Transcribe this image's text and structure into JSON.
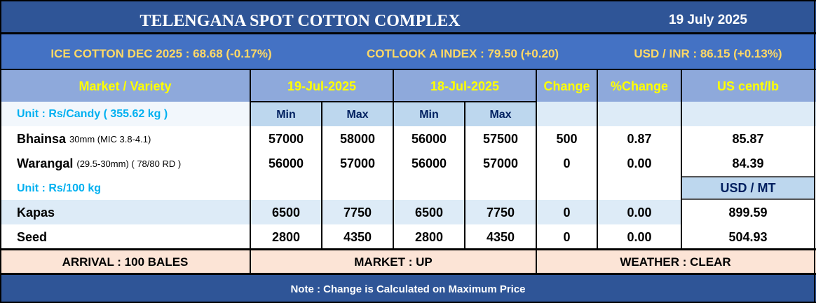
{
  "header": {
    "title": "TELENGANA SPOT COTTON COMPLEX",
    "date": "19 July 2025"
  },
  "ticker": {
    "ice": "ICE COTTON DEC 2025 : 68.68 (-0.17%)",
    "cotlook": "COTLOOK A INDEX : 79.50 (+0.20)",
    "usdinr": "USD / INR : 86.15 (+0.13%)"
  },
  "columns": {
    "market": "Market / Variety",
    "date1": "19-Jul-2025",
    "date2": "18-Jul-2025",
    "change": "Change",
    "pct": "%Change",
    "us": "US cent/lb",
    "min": "Min",
    "max": "Max",
    "usd_mt": "USD / MT"
  },
  "units": {
    "candy": "Unit : Rs/Candy ( 355.62 kg )",
    "kg100": "Unit : Rs/100 kg"
  },
  "rows": [
    {
      "name": "Bhainsa",
      "detail": "30mm (MIC 3.8-4.1)",
      "min1": "57000",
      "max1": "58000",
      "min2": "56000",
      "max2": "57500",
      "change": "500",
      "pct": "0.87",
      "us": "85.87"
    },
    {
      "name": "Warangal",
      "detail": "(29.5-30mm) ( 78/80 RD )",
      "min1": "56000",
      "max1": "57000",
      "min2": "56000",
      "max2": "57000",
      "change": "0",
      "pct": "0.00",
      "us": "84.39"
    },
    {
      "name": "Kapas",
      "detail": "",
      "min1": "6500",
      "max1": "7750",
      "min2": "6500",
      "max2": "7750",
      "change": "0",
      "pct": "0.00",
      "us": "899.59"
    },
    {
      "name": "Seed",
      "detail": "",
      "min1": "2800",
      "max1": "4350",
      "min2": "2800",
      "max2": "4350",
      "change": "0",
      "pct": "0.00",
      "us": "504.93"
    }
  ],
  "footer": {
    "arrival": "ARRIVAL : 100 BALES",
    "market": "MARKET : UP",
    "weather": "WEATHER : CLEAR",
    "note": "Note : Change is Calculated on Maximum Price"
  },
  "colors": {
    "title_bg": "#2F5597",
    "ticker_bg": "#4472C4",
    "header_bg": "#8EA9DB",
    "light_blue": "#DDEBF7",
    "minmax_bg": "#BDD7EE",
    "footer_bg": "#FCE4D6",
    "yellow": "#FFFF00",
    "gold": "#FFD966",
    "unit_blue": "#00B0F0"
  }
}
